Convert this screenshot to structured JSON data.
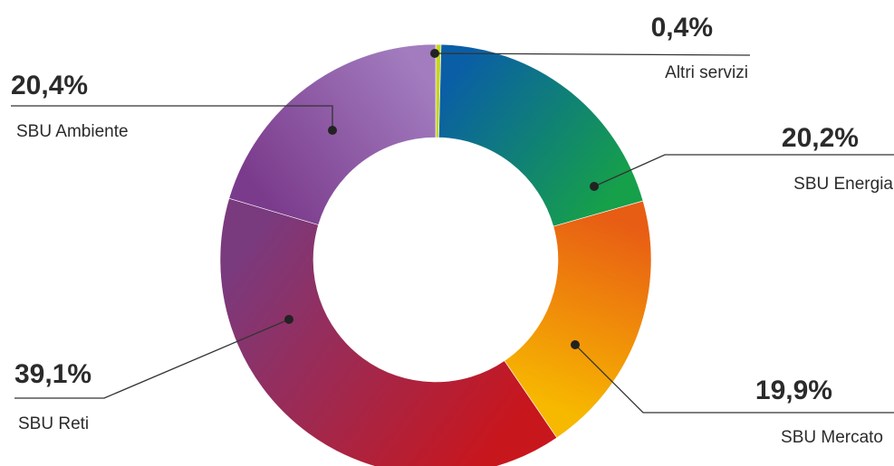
{
  "chart_data": {
    "type": "pie",
    "variant": "donut",
    "categories": [
      "Altri servizi",
      "SBU Energia",
      "SBU Mercato",
      "SBU Reti",
      "SBU Ambiente"
    ],
    "values": [
      0.4,
      20.2,
      19.9,
      39.1,
      20.4
    ],
    "value_labels": [
      "0,4%",
      "20,2%",
      "19,9%",
      "39,1%",
      "20,4%"
    ],
    "unit": "%",
    "colors": [
      [
        "#c8d42a",
        "#c8d42a"
      ],
      [
        "#0a5ea6",
        "#16a04a"
      ],
      [
        "#e85d14",
        "#f7b800"
      ],
      [
        "#c8161d",
        "#7a3a7e"
      ],
      [
        "#7b3b8c",
        "#a27cbf"
      ]
    ],
    "start_angle_deg": 0,
    "direction": "clockwise",
    "legend": "none",
    "title": "",
    "subtitle": ""
  }
}
